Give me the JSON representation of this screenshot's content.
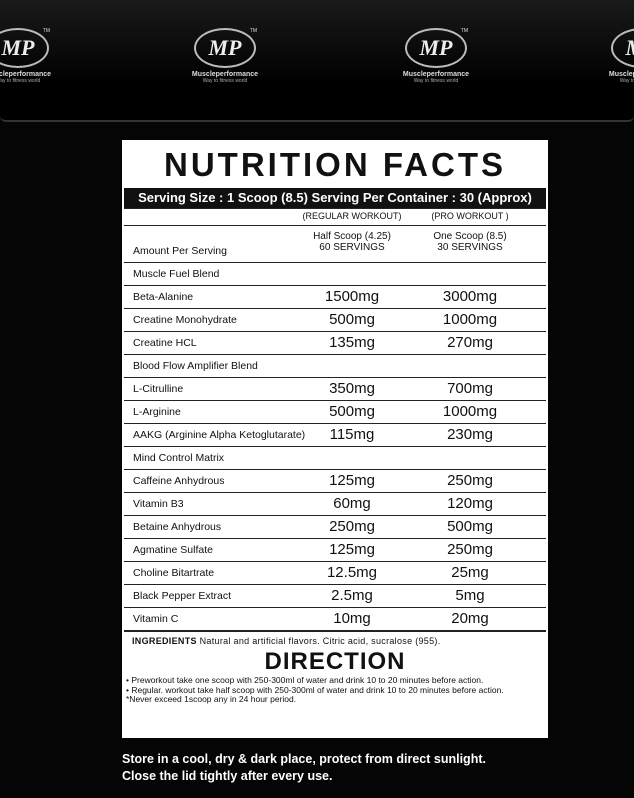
{
  "logo": {
    "mark": "MP",
    "tm": "TM",
    "brand": "Muscleperformance",
    "tagline": "Way to fitness world"
  },
  "panel": {
    "title": "NUTRITION FACTS",
    "serving": "Serving Size : 1 Scoop (8.5) Serving Per Container : 30 (Approx)",
    "columns": [
      "(REGULAR WORKOUT)",
      "(PRO WORKOUT )"
    ],
    "amount": {
      "label": "Amount Per Serving",
      "regular": [
        "Half Scoop (4.25)",
        "60 SERVINGS"
      ],
      "pro": [
        "One Scoop (8.5)",
        "30 SERVINGS"
      ]
    },
    "rows": [
      {
        "name": "Muscle Fuel Blend"
      },
      {
        "name": "Beta-Alanine",
        "regular": "1500mg",
        "pro": "3000mg"
      },
      {
        "name": "Creatine Monohydrate",
        "regular": "500mg",
        "pro": "1000mg"
      },
      {
        "name": "Creatine HCL",
        "regular": "135mg",
        "pro": "270mg"
      },
      {
        "name": "Blood Flow Amplifier Blend"
      },
      {
        "name": "L-Citrulline",
        "regular": "350mg",
        "pro": "700mg"
      },
      {
        "name": "L-Arginine",
        "regular": "500mg",
        "pro": "1000mg"
      },
      {
        "name": "AAKG (Arginine Alpha Ketoglutarate)",
        "regular": "115mg",
        "pro": "230mg"
      },
      {
        "name": "Mind Control Matrix"
      },
      {
        "name": "Caffeine Anhydrous",
        "regular": "125mg",
        "pro": "250mg"
      },
      {
        "name": "Vitamin B3",
        "regular": "60mg",
        "pro": "120mg"
      },
      {
        "name": "Betaine Anhydrous",
        "regular": "250mg",
        "pro": "500mg"
      },
      {
        "name": "Agmatine Sulfate",
        "regular": "125mg",
        "pro": "250mg"
      },
      {
        "name": "Choline Bitartrate",
        "regular": "12.5mg",
        "pro": "25mg"
      },
      {
        "name": "Black Pepper Extract",
        "regular": "2.5mg",
        "pro": "5mg"
      },
      {
        "name": "Vitamin C",
        "regular": "10mg",
        "pro": "20mg"
      }
    ],
    "ingredients_label": "INGREDIENTS",
    "ingredients": "Natural and artificial flavors. Citric acid, sucralose (955).",
    "direction_title": "DIRECTION",
    "directions": [
      "• Preworkout take one scoop with 250-300ml of water and drink 10 to 20 minutes before action.",
      "• Regular. workout take half scoop with 250-300ml of water and drink 10 to 20 minutes before action.",
      "*Never exceed 1scoop any in 24 hour period."
    ]
  },
  "footer": [
    "Store in a cool, dry & dark place, protect from direct sunlight.",
    "Close the lid tightly after every use."
  ]
}
